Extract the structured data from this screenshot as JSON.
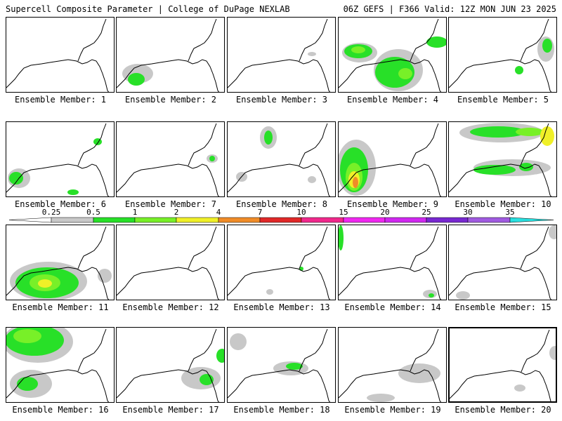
{
  "header": {
    "title": "Supercell Composite Parameter | College of DuPage NEXLAB",
    "valid": "06Z GEFS | F366 Valid: 12Z MON JUN 23 2025"
  },
  "colorbar": {
    "ticks": [
      "0.25",
      "0.5",
      "1",
      "2",
      "4",
      "7",
      "10",
      "15",
      "20",
      "25",
      "30",
      "35"
    ],
    "colors": [
      "#c8c8c8",
      "#28e028",
      "#78f028",
      "#f0f028",
      "#f08c28",
      "#e02828",
      "#f0288c",
      "#f028f0",
      "#d028f0",
      "#7828d0",
      "#a05ae0",
      "#28e0e0"
    ]
  },
  "panels": [
    {
      "label": "Ensemble Member: 1",
      "blobs": []
    },
    {
      "label": "Ensemble Member: 2",
      "blobs": [
        {
          "c": "gray",
          "x": 30,
          "y": 80,
          "rx": 22,
          "ry": 14
        },
        {
          "c": "green",
          "x": 28,
          "y": 88,
          "rx": 12,
          "ry": 9
        }
      ]
    },
    {
      "label": "Ensemble Member: 3",
      "blobs": [
        {
          "c": "gray",
          "x": 120,
          "y": 52,
          "rx": 6,
          "ry": 3
        }
      ]
    },
    {
      "label": "Ensemble Member: 4",
      "blobs": [
        {
          "c": "gray",
          "x": 30,
          "y": 50,
          "rx": 25,
          "ry": 14
        },
        {
          "c": "green",
          "x": 28,
          "y": 48,
          "rx": 20,
          "ry": 10
        },
        {
          "c": "lime",
          "x": 28,
          "y": 46,
          "rx": 10,
          "ry": 5
        },
        {
          "c": "gray",
          "x": 85,
          "y": 75,
          "rx": 35,
          "ry": 30
        },
        {
          "c": "green",
          "x": 80,
          "y": 78,
          "rx": 28,
          "ry": 22
        },
        {
          "c": "lime",
          "x": 95,
          "y": 80,
          "rx": 10,
          "ry": 8
        },
        {
          "c": "green",
          "x": 140,
          "y": 35,
          "rx": 15,
          "ry": 8
        }
      ]
    },
    {
      "label": "Ensemble Member: 5",
      "blobs": [
        {
          "c": "gray",
          "x": 138,
          "y": 45,
          "rx": 12,
          "ry": 18
        },
        {
          "c": "green",
          "x": 140,
          "y": 40,
          "rx": 7,
          "ry": 10
        },
        {
          "c": "green",
          "x": 100,
          "y": 75,
          "rx": 6,
          "ry": 6
        }
      ]
    },
    {
      "label": "Ensemble Member: 6",
      "blobs": [
        {
          "c": "gray",
          "x": 18,
          "y": 80,
          "rx": 16,
          "ry": 14
        },
        {
          "c": "green",
          "x": 14,
          "y": 80,
          "rx": 10,
          "ry": 9
        },
        {
          "c": "green",
          "x": 130,
          "y": 28,
          "rx": 6,
          "ry": 5
        },
        {
          "c": "green",
          "x": 95,
          "y": 100,
          "rx": 8,
          "ry": 4
        }
      ]
    },
    {
      "label": "Ensemble Member: 7",
      "blobs": [
        {
          "c": "gray",
          "x": 136,
          "y": 52,
          "rx": 8,
          "ry": 6
        },
        {
          "c": "green",
          "x": 136,
          "y": 52,
          "rx": 4,
          "ry": 4
        }
      ]
    },
    {
      "label": "Ensemble Member: 8",
      "blobs": [
        {
          "c": "gray",
          "x": 58,
          "y": 22,
          "rx": 12,
          "ry": 16
        },
        {
          "c": "green",
          "x": 58,
          "y": 22,
          "rx": 6,
          "ry": 10
        },
        {
          "c": "gray",
          "x": 20,
          "y": 78,
          "rx": 8,
          "ry": 7
        },
        {
          "c": "gray",
          "x": 120,
          "y": 82,
          "rx": 6,
          "ry": 5
        }
      ]
    },
    {
      "label": "Ensemble Member: 9",
      "blobs": [
        {
          "c": "gray",
          "x": 25,
          "y": 65,
          "rx": 28,
          "ry": 40
        },
        {
          "c": "green",
          "x": 22,
          "y": 68,
          "rx": 20,
          "ry": 32
        },
        {
          "c": "lime",
          "x": 22,
          "y": 78,
          "rx": 12,
          "ry": 20
        },
        {
          "c": "yellow",
          "x": 22,
          "y": 82,
          "rx": 8,
          "ry": 12
        },
        {
          "c": "orange",
          "x": 24,
          "y": 86,
          "rx": 4,
          "ry": 8
        }
      ]
    },
    {
      "label": "Ensemble Member: 10",
      "blobs": [
        {
          "c": "gray",
          "x": 75,
          "y": 15,
          "rx": 60,
          "ry": 14
        },
        {
          "c": "green",
          "x": 70,
          "y": 14,
          "rx": 40,
          "ry": 8
        },
        {
          "c": "lime",
          "x": 115,
          "y": 14,
          "rx": 20,
          "ry": 6
        },
        {
          "c": "yellow",
          "x": 140,
          "y": 20,
          "rx": 10,
          "ry": 14
        },
        {
          "c": "gray",
          "x": 90,
          "y": 65,
          "rx": 55,
          "ry": 12
        },
        {
          "c": "green",
          "x": 65,
          "y": 68,
          "rx": 30,
          "ry": 7
        },
        {
          "c": "green",
          "x": 110,
          "y": 64,
          "rx": 10,
          "ry": 6
        }
      ]
    },
    {
      "label": "Ensemble Member: 11",
      "blobs": [
        {
          "c": "gray",
          "x": 60,
          "y": 80,
          "rx": 55,
          "ry": 28
        },
        {
          "c": "green",
          "x": 58,
          "y": 82,
          "rx": 45,
          "ry": 22
        },
        {
          "c": "lime",
          "x": 55,
          "y": 82,
          "rx": 22,
          "ry": 12
        },
        {
          "c": "yellow",
          "x": 55,
          "y": 83,
          "rx": 10,
          "ry": 6
        },
        {
          "c": "gray",
          "x": 140,
          "y": 72,
          "rx": 10,
          "ry": 10
        }
      ]
    },
    {
      "label": "Ensemble Member: 12",
      "blobs": []
    },
    {
      "label": "Ensemble Member: 13",
      "blobs": [
        {
          "c": "green",
          "x": 105,
          "y": 62,
          "rx": 3,
          "ry": 3
        },
        {
          "c": "gray",
          "x": 60,
          "y": 95,
          "rx": 5,
          "ry": 4
        }
      ]
    },
    {
      "label": "Ensemble Member: 14",
      "blobs": [
        {
          "c": "green",
          "x": 3,
          "y": 18,
          "rx": 4,
          "ry": 18
        },
        {
          "c": "gray",
          "x": 130,
          "y": 98,
          "rx": 10,
          "ry": 6
        },
        {
          "c": "green",
          "x": 132,
          "y": 100,
          "rx": 4,
          "ry": 3
        }
      ]
    },
    {
      "label": "Ensemble Member: 15",
      "blobs": [
        {
          "c": "gray",
          "x": 150,
          "y": 10,
          "rx": 8,
          "ry": 10
        },
        {
          "c": "gray",
          "x": 20,
          "y": 100,
          "rx": 10,
          "ry": 6
        }
      ]
    },
    {
      "label": "Ensemble Member: 16",
      "blobs": [
        {
          "c": "gray",
          "x": 45,
          "y": 20,
          "rx": 50,
          "ry": 30
        },
        {
          "c": "green",
          "x": 40,
          "y": 18,
          "rx": 42,
          "ry": 22
        },
        {
          "c": "lime",
          "x": 30,
          "y": 12,
          "rx": 20,
          "ry": 10
        },
        {
          "c": "gray",
          "x": 35,
          "y": 80,
          "rx": 30,
          "ry": 20
        },
        {
          "c": "green",
          "x": 30,
          "y": 80,
          "rx": 15,
          "ry": 10
        }
      ]
    },
    {
      "label": "Ensemble Member: 17",
      "blobs": [
        {
          "c": "gray",
          "x": 120,
          "y": 72,
          "rx": 28,
          "ry": 16
        },
        {
          "c": "green",
          "x": 128,
          "y": 74,
          "rx": 10,
          "ry": 8
        },
        {
          "c": "green",
          "x": 150,
          "y": 40,
          "rx": 8,
          "ry": 10
        }
      ]
    },
    {
      "label": "Ensemble Member: 18",
      "blobs": [
        {
          "c": "gray",
          "x": 15,
          "y": 20,
          "rx": 12,
          "ry": 12
        },
        {
          "c": "gray",
          "x": 90,
          "y": 58,
          "rx": 25,
          "ry": 10
        },
        {
          "c": "green",
          "x": 95,
          "y": 55,
          "rx": 12,
          "ry": 5
        }
      ]
    },
    {
      "label": "Ensemble Member: 19",
      "blobs": [
        {
          "c": "gray",
          "x": 115,
          "y": 65,
          "rx": 30,
          "ry": 14
        },
        {
          "c": "gray",
          "x": 60,
          "y": 100,
          "rx": 20,
          "ry": 6
        }
      ]
    },
    {
      "label": "Ensemble Member: 20",
      "blobs": [
        {
          "c": "gray",
          "x": 150,
          "y": 35,
          "rx": 8,
          "ry": 10
        },
        {
          "c": "gray",
          "x": 100,
          "y": 85,
          "rx": 8,
          "ry": 5
        }
      ]
    }
  ]
}
